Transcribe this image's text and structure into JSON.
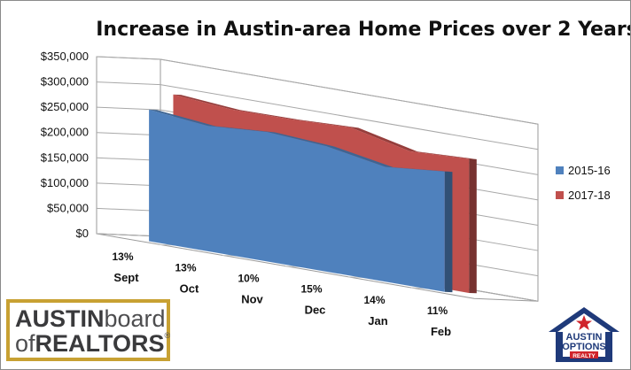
{
  "chart_data": {
    "type": "area",
    "title": "Increase in Austin-area Home Prices over 2 Years",
    "categories": [
      "Sept",
      "Oct",
      "Nov",
      "Dec",
      "Jan",
      "Feb"
    ],
    "percent_labels": [
      "13%",
      "13%",
      "10%",
      "15%",
      "14%",
      "11%"
    ],
    "series": [
      {
        "name": "2015-16",
        "color": "#4f81bd",
        "values": [
          260000,
          248000,
          256000,
          248000,
          227000,
          238000
        ]
      },
      {
        "name": "2017-18",
        "color": "#c0504d",
        "values": [
          292000,
          282000,
          283000,
          287000,
          260000,
          265000
        ]
      }
    ],
    "y_ticks": [
      "$0",
      "$50,000",
      "$100,000",
      "$150,000",
      "$200,000",
      "$250,000",
      "$300,000",
      "$350,000"
    ],
    "ylim": [
      0,
      350000
    ],
    "grid": true,
    "legend_position": "right",
    "three_d": true
  },
  "logos": {
    "abor": {
      "part1": "AUSTIN",
      "part2": "board",
      "part3": "of",
      "part4": "REALTORS",
      "mark": "®"
    },
    "austin_options": {
      "line1": "AUSTIN",
      "line2": "OPTIONS",
      "line3": "REALTY"
    }
  }
}
